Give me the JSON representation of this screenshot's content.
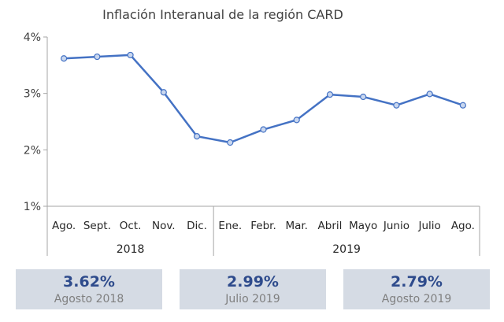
{
  "chart_data": {
    "type": "line",
    "title": "Inflación Interanual de la región CARD",
    "categories": [
      "Ago.",
      "Sept.",
      "Oct.",
      "Nov.",
      "Dic.",
      "Ene.",
      "Febr.",
      "Mar.",
      "Abril",
      "Mayo",
      "Junio",
      "Julio",
      "Ago."
    ],
    "year_groups": [
      {
        "label": "2018",
        "count": 5
      },
      {
        "label": "2019",
        "count": 8
      }
    ],
    "series": [
      {
        "values": [
          3.62,
          3.65,
          3.68,
          3.02,
          2.24,
          2.13,
          2.36,
          2.53,
          2.98,
          2.94,
          2.79,
          2.99,
          2.79
        ]
      }
    ],
    "y_ticks": [
      "1%",
      "2%",
      "3%",
      "4%"
    ],
    "ylim": [
      1,
      4
    ],
    "grid": false,
    "color": "#4472c4"
  },
  "cards": [
    {
      "value": "3.62%",
      "label": "Agosto 2018"
    },
    {
      "value": "2.99%",
      "label": "Julio 2019"
    },
    {
      "value": "2.79%",
      "label": "Agosto 2019"
    }
  ]
}
